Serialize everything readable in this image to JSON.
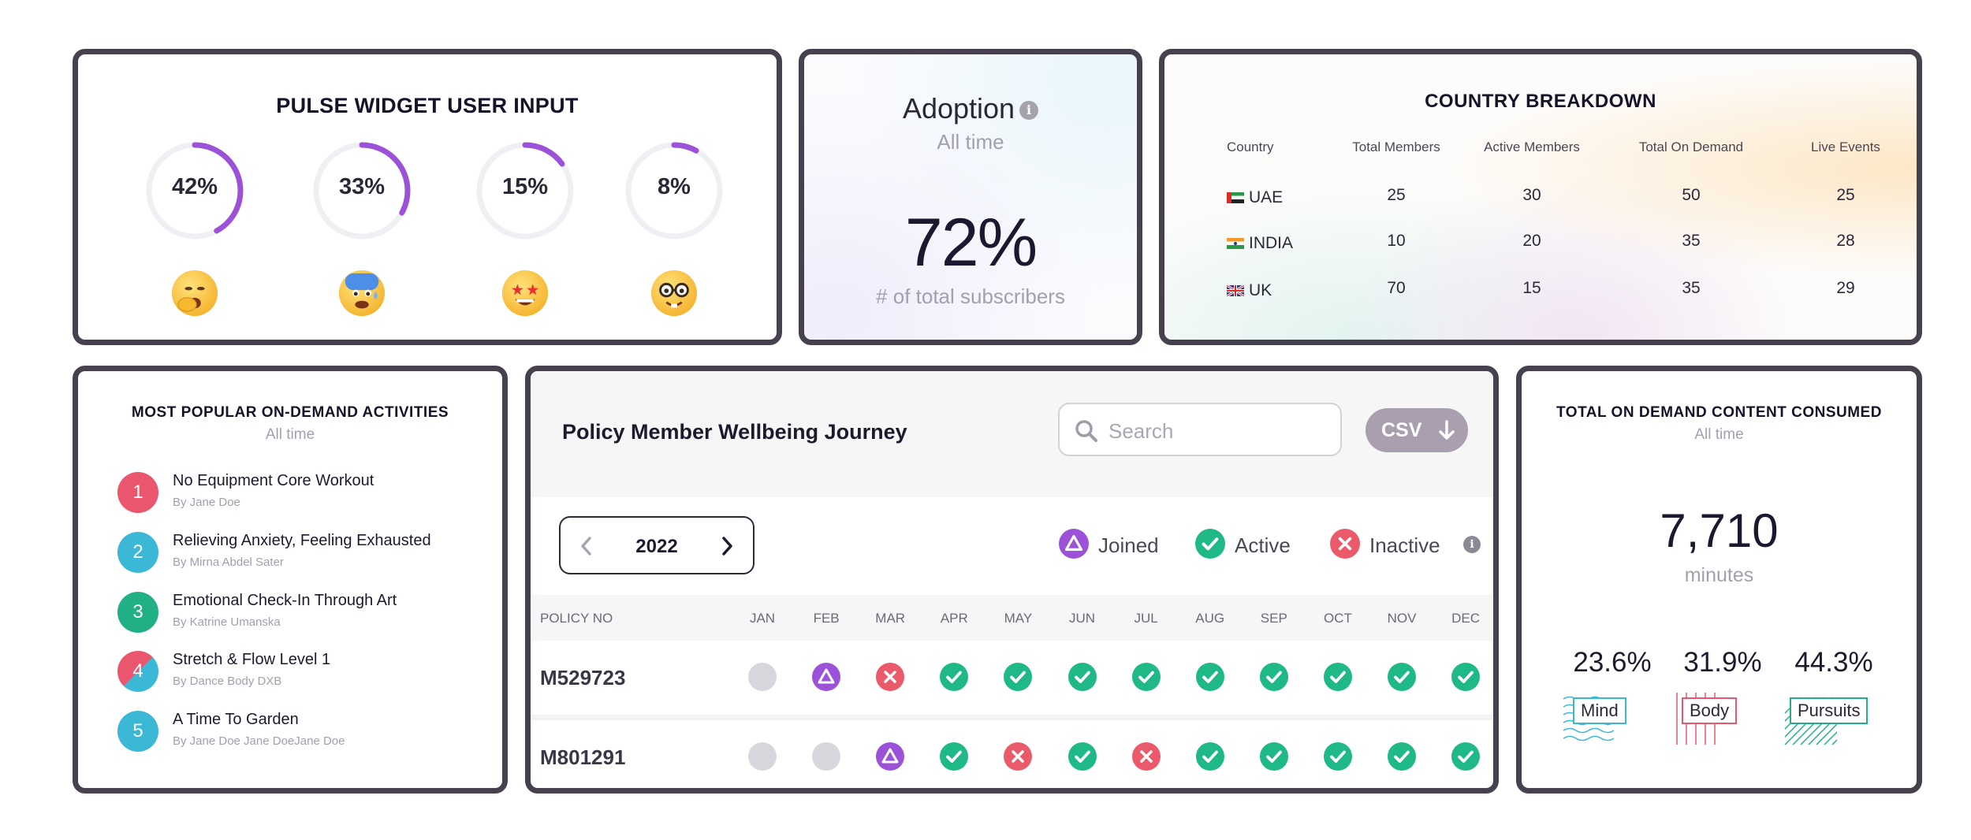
{
  "pulse": {
    "title": "PULSE WIDGET USER INPUT",
    "items": [
      {
        "label": "42%",
        "value": 0.42,
        "emoji": "yawning-face-icon"
      },
      {
        "label": "33%",
        "value": 0.33,
        "emoji": "anxious-face-icon"
      },
      {
        "label": "15%",
        "value": 0.15,
        "emoji": "star-struck-face-icon"
      },
      {
        "label": "8%",
        "value": 0.08,
        "emoji": "nerd-face-icon"
      }
    ],
    "ring_color": "#9b52d9",
    "track_color": "#eef0f3"
  },
  "adoption": {
    "title": "Adoption",
    "subtitle": "All time",
    "value": "72%",
    "caption": "# of total subscribers"
  },
  "country": {
    "title": "COUNTRY BREAKDOWN",
    "columns": [
      "Country",
      "Total Members",
      "Active Members",
      "Total On Demand",
      "Live Events"
    ],
    "rows": [
      {
        "country": "UAE",
        "flag": "uae-flag-icon",
        "total": "25",
        "active": "30",
        "on_demand": "50",
        "live": "25"
      },
      {
        "country": "INDIA",
        "flag": "india-flag-icon",
        "total": "10",
        "active": "20",
        "on_demand": "35",
        "live": "28"
      },
      {
        "country": "UK",
        "flag": "uk-flag-icon",
        "total": "70",
        "active": "15",
        "on_demand": "35",
        "live": "29"
      }
    ]
  },
  "popular": {
    "title": "MOST POPULAR ON-DEMAND ACTIVITIES",
    "subtitle": "All time",
    "items": [
      {
        "num": "1",
        "title": "No Equipment Core Workout",
        "by": "By Jane Doe",
        "color": "#e9566d"
      },
      {
        "num": "2",
        "title": "Relieving Anxiety, Feeling Exhausted",
        "by": "By Mirna Abdel Sater",
        "color": "#3bb8d6"
      },
      {
        "num": "3",
        "title": "Emotional Check-In Through Art",
        "by": "By Katrine Umanska",
        "color": "#21b086"
      },
      {
        "num": "4",
        "title": "Stretch & Flow Level 1",
        "by": "By Dance Body DXB",
        "color": "#e9566d",
        "color2": "#3bb8d6"
      },
      {
        "num": "5",
        "title": "A Time To Garden",
        "by": "By Jane Doe Jane DoeJane Doe",
        "color": "#3bb8d6"
      }
    ]
  },
  "journey": {
    "title": "Policy Member Wellbeing Journey",
    "search_placeholder": "Search",
    "csv_label": "CSV",
    "year": "2022",
    "legend": [
      {
        "label": "Joined",
        "status": "joined"
      },
      {
        "label": "Active",
        "status": "active"
      },
      {
        "label": "Inactive",
        "status": "inactive"
      }
    ],
    "policy_header": "POLICY NO",
    "months": [
      "JAN",
      "FEB",
      "MAR",
      "APR",
      "MAY",
      "JUN",
      "JUL",
      "AUG",
      "SEP",
      "OCT",
      "NOV",
      "DEC"
    ],
    "rows": [
      {
        "policy": "M529723",
        "statuses": [
          "none",
          "joined",
          "inactive",
          "active",
          "active",
          "active",
          "active",
          "active",
          "active",
          "active",
          "active",
          "active"
        ]
      },
      {
        "policy": "M801291",
        "statuses": [
          "none",
          "none",
          "joined",
          "active",
          "inactive",
          "active",
          "inactive",
          "active",
          "active",
          "active",
          "active",
          "active"
        ]
      }
    ],
    "colors": {
      "joined": "#9b52d9",
      "active": "#1fb887",
      "inactive": "#ea5a6b",
      "none": "#d8d6dc"
    }
  },
  "total": {
    "title": "TOTAL ON DEMAND CONTENT CONSUMED",
    "subtitle": "All time",
    "value": "7,710",
    "unit": "minutes",
    "segments": [
      {
        "pct": "23.6%",
        "label": "Mind",
        "color": "#3bb8d6"
      },
      {
        "pct": "31.9%",
        "label": "Body",
        "color": "#e9566d"
      },
      {
        "pct": "44.3%",
        "label": "Pursuits",
        "color": "#21b086"
      }
    ]
  }
}
